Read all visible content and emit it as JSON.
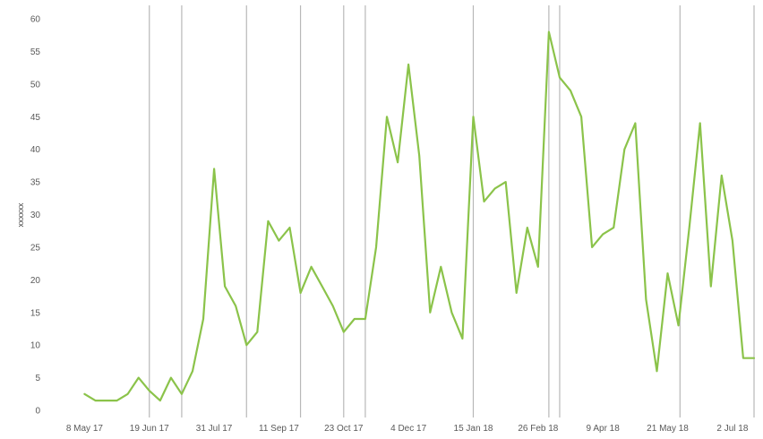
{
  "chart_data": {
    "type": "line",
    "ylabel": "xxxxxx",
    "ylim": [
      0,
      60
    ],
    "y_ticks": [
      "0",
      "5",
      "10",
      "15",
      "20",
      "25",
      "30",
      "35",
      "40",
      "45",
      "50",
      "55",
      "60"
    ],
    "x_range": [
      "2017-04-25",
      "2018-07-16"
    ],
    "x_ticks": [
      {
        "date": "2017-05-08",
        "label": "8 May 17"
      },
      {
        "date": "2017-06-19",
        "label": "19 Jun 17"
      },
      {
        "date": "2017-07-31",
        "label": "31 Jul 17"
      },
      {
        "date": "2017-09-11",
        "label": "11 Sep 17"
      },
      {
        "date": "2017-10-23",
        "label": "23 Oct 17"
      },
      {
        "date": "2017-12-04",
        "label": "4 Dec 17"
      },
      {
        "date": "2018-01-15",
        "label": "15 Jan 18"
      },
      {
        "date": "2018-02-26",
        "label": "26 Feb 18"
      },
      {
        "date": "2018-04-09",
        "label": "9 Apr 18"
      },
      {
        "date": "2018-05-21",
        "label": "21 May 18"
      },
      {
        "date": "2018-07-02",
        "label": "2 Jul 18"
      }
    ],
    "vertical_markers": [
      "2017-06-19",
      "2017-07-10",
      "2017-08-21",
      "2017-09-25",
      "2017-10-23",
      "2017-11-06",
      "2018-01-15",
      "2018-03-05",
      "2018-03-12",
      "2018-05-29",
      "2018-07-16"
    ],
    "series": [
      {
        "color": "#8BC34A",
        "x": [
          "2017-05-08",
          "2017-05-15",
          "2017-05-22",
          "2017-05-29",
          "2017-06-05",
          "2017-06-12",
          "2017-06-19",
          "2017-06-26",
          "2017-07-03",
          "2017-07-10",
          "2017-07-17",
          "2017-07-24",
          "2017-07-31",
          "2017-08-07",
          "2017-08-14",
          "2017-08-21",
          "2017-08-28",
          "2017-09-04",
          "2017-09-11",
          "2017-09-18",
          "2017-09-25",
          "2017-10-02",
          "2017-10-09",
          "2017-10-16",
          "2017-10-23",
          "2017-10-30",
          "2017-11-06",
          "2017-11-13",
          "2017-11-20",
          "2017-11-27",
          "2017-12-04",
          "2017-12-11",
          "2017-12-18",
          "2017-12-25",
          "2018-01-01",
          "2018-01-08",
          "2018-01-15",
          "2018-01-22",
          "2018-01-29",
          "2018-02-05",
          "2018-02-12",
          "2018-02-19",
          "2018-02-26",
          "2018-03-05",
          "2018-03-12",
          "2018-03-19",
          "2018-03-26",
          "2018-04-02",
          "2018-04-09",
          "2018-04-16",
          "2018-04-23",
          "2018-04-30",
          "2018-05-07",
          "2018-05-14",
          "2018-05-21",
          "2018-05-28",
          "2018-06-04",
          "2018-06-11",
          "2018-06-18",
          "2018-06-25",
          "2018-07-02",
          "2018-07-09",
          "2018-07-16"
        ],
        "values": [
          2.5,
          1.5,
          1.5,
          1.5,
          2.5,
          5,
          3,
          1.5,
          5,
          2.5,
          6,
          14,
          37,
          19,
          16,
          10,
          12,
          29,
          26,
          28,
          18,
          22,
          19,
          16,
          12,
          14,
          14,
          25,
          45,
          38,
          53,
          39,
          15,
          22,
          15,
          11,
          45,
          32,
          34,
          35,
          18,
          28,
          22,
          58,
          51,
          49,
          45,
          25,
          27,
          28,
          40,
          44,
          17,
          6,
          21,
          13,
          28,
          44,
          19,
          36,
          26,
          8,
          8
        ]
      }
    ]
  }
}
